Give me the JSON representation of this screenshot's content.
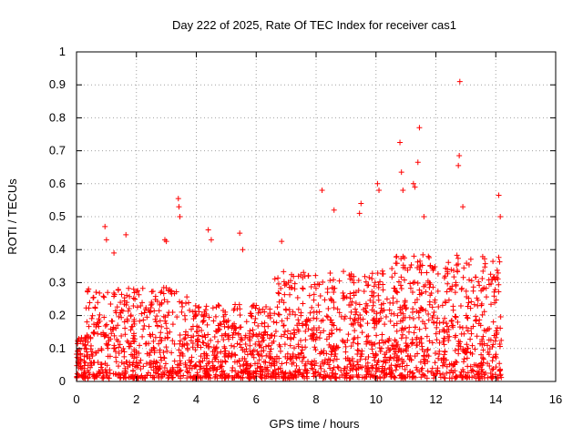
{
  "chart_data": {
    "type": "scatter",
    "title": "Day 222 of 2025, Rate Of TEC Index for receiver cas1",
    "xlabel": "GPS time / hours",
    "ylabel": "ROTI / TECUs",
    "xlim": [
      0,
      16
    ],
    "ylim": [
      0,
      1
    ],
    "xticks": [
      "0",
      "2",
      "4",
      "6",
      "8",
      "10",
      "12",
      "14",
      "16"
    ],
    "yticks": [
      "0",
      "0.1",
      "0.2",
      "0.3",
      "0.4",
      "0.5",
      "0.6",
      "0.7",
      "0.8",
      "0.9",
      "1"
    ],
    "grid": true,
    "marker": "+",
    "color": "#ff0000",
    "data_range_hours": [
      0,
      14.2
    ],
    "notes": "Dense scatter of ROTI values; bulk between 0 and ~0.35 TECU/min, outliers listed in highlights.",
    "highlights": [
      {
        "x": 0.95,
        "y": 0.47
      },
      {
        "x": 1.0,
        "y": 0.43
      },
      {
        "x": 1.25,
        "y": 0.39
      },
      {
        "x": 1.65,
        "y": 0.445
      },
      {
        "x": 2.95,
        "y": 0.43
      },
      {
        "x": 3.0,
        "y": 0.425
      },
      {
        "x": 3.4,
        "y": 0.555
      },
      {
        "x": 3.42,
        "y": 0.53
      },
      {
        "x": 3.45,
        "y": 0.5
      },
      {
        "x": 4.4,
        "y": 0.46
      },
      {
        "x": 4.5,
        "y": 0.43
      },
      {
        "x": 5.45,
        "y": 0.45
      },
      {
        "x": 5.55,
        "y": 0.4
      },
      {
        "x": 6.85,
        "y": 0.425
      },
      {
        "x": 8.2,
        "y": 0.58
      },
      {
        "x": 8.6,
        "y": 0.52
      },
      {
        "x": 9.5,
        "y": 0.54
      },
      {
        "x": 9.45,
        "y": 0.51
      },
      {
        "x": 10.05,
        "y": 0.6
      },
      {
        "x": 10.1,
        "y": 0.58
      },
      {
        "x": 10.8,
        "y": 0.725
      },
      {
        "x": 10.85,
        "y": 0.635
      },
      {
        "x": 10.9,
        "y": 0.58
      },
      {
        "x": 11.25,
        "y": 0.6
      },
      {
        "x": 11.3,
        "y": 0.59
      },
      {
        "x": 11.45,
        "y": 0.77
      },
      {
        "x": 11.4,
        "y": 0.665
      },
      {
        "x": 11.6,
        "y": 0.5
      },
      {
        "x": 12.8,
        "y": 0.91
      },
      {
        "x": 12.78,
        "y": 0.685
      },
      {
        "x": 12.75,
        "y": 0.655
      },
      {
        "x": 12.9,
        "y": 0.53
      },
      {
        "x": 14.1,
        "y": 0.565
      },
      {
        "x": 14.15,
        "y": 0.5
      }
    ]
  }
}
